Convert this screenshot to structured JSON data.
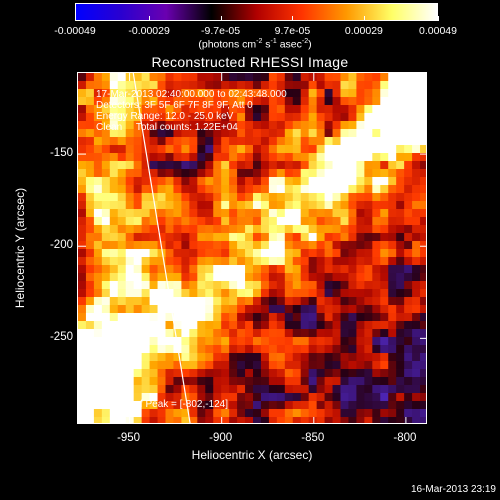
{
  "colorbar": {
    "ticks": [
      {
        "label": "-0.00049",
        "value": -0.00049
      },
      {
        "label": "-0.00029",
        "value": -0.00029
      },
      {
        "label": "-9.7e-05",
        "value": -9.7e-05
      },
      {
        "label": "9.7e-05",
        "value": 9.7e-05
      },
      {
        "label": "0.00029",
        "value": 0.00029
      },
      {
        "label": "0.00049",
        "value": 0.00049
      }
    ],
    "range": [
      -0.00049,
      0.00049
    ],
    "units_prefix": "(photons cm",
    "units_sup1": "-2",
    "units_mid": " s",
    "units_sup2": "-1",
    "units_mid2": " asec",
    "units_sup3": "-2",
    "units_suffix": ")",
    "colors": [
      "#0000ff",
      "#2a00d0",
      "#6a00b0",
      "#000000",
      "#b00000",
      "#ff3300",
      "#ff9900",
      "#ffff66",
      "#ffffff"
    ]
  },
  "title": "Reconstructed RHESSI Image",
  "annotations": {
    "time_range": "17-Mar-2013 02:40:00.000 to 02:43:48.000",
    "detectors": "Detectors: 3F 5F 6F 7F 8F 9F, Att 0",
    "energy": "Energy Range: 12.0 - 25.0 keV",
    "method": "Clean     Total counts: 1.22E+04",
    "peak": "Position of Peak = [-802,-124]"
  },
  "axes": {
    "xlabel": "Heliocentric X (arcsec)",
    "ylabel": "Heliocentric Y (arcsec)",
    "xlim": [
      -978,
      -788
    ],
    "ylim": [
      -297,
      -106
    ],
    "xticks": [
      {
        "label": "-950",
        "value": -950
      },
      {
        "label": "-900",
        "value": -900
      },
      {
        "label": "-850",
        "value": -850
      },
      {
        "label": "-800",
        "value": -800
      }
    ],
    "yticks": [
      {
        "label": "-150",
        "value": -150
      },
      {
        "label": "-200",
        "value": -200
      },
      {
        "label": "-250",
        "value": -250
      }
    ]
  },
  "limb_line": {
    "start": [
      -948,
      -106
    ],
    "end": [
      -917,
      -297
    ]
  },
  "timestamp": "16-Mar-2013 23:19"
}
